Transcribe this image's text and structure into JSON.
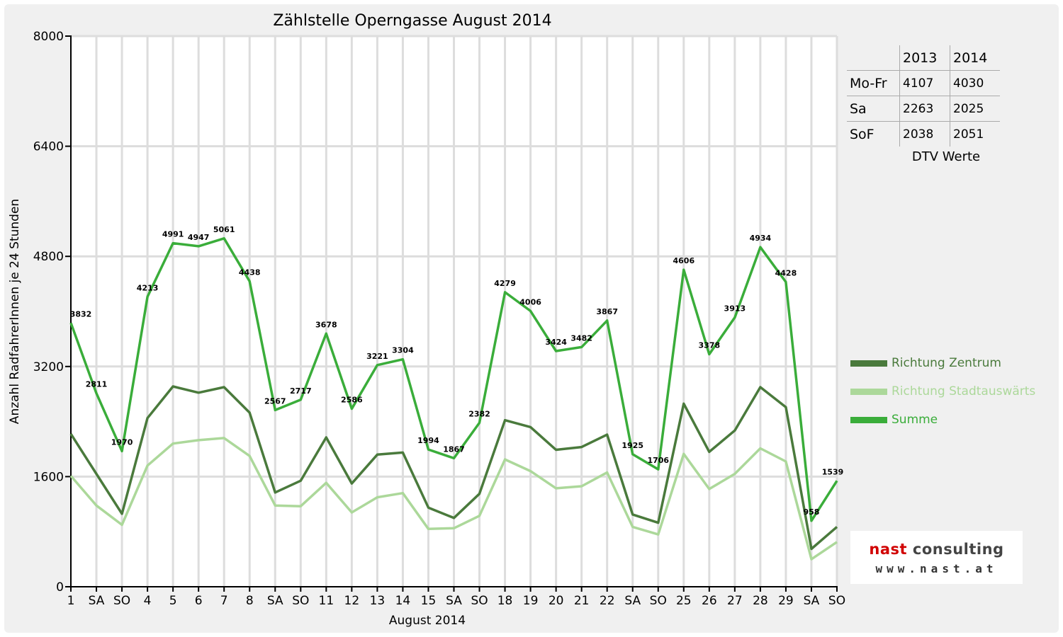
{
  "chart_data": {
    "type": "line",
    "title": "Zählstelle Operngasse August 2014",
    "xlabel": "August 2014",
    "ylabel": "Anzahl RadfahrerInnen je 24 Stunden",
    "ylim": [
      0,
      8000
    ],
    "yticks": [
      "0",
      "1600",
      "3200",
      "4800",
      "6400",
      "8000"
    ],
    "grid": true,
    "legend_position": "right",
    "categories": [
      "1",
      "SA",
      "SO",
      "4",
      "5",
      "6",
      "7",
      "8",
      "SA",
      "SO",
      "11",
      "12",
      "13",
      "14",
      "15",
      "SA",
      "SO",
      "18",
      "19",
      "20",
      "21",
      "22",
      "SA",
      "SO",
      "25",
      "26",
      "27",
      "28",
      "29",
      "SA",
      "SO"
    ],
    "category_colors": [
      "#000000",
      "#000000",
      "#e00000",
      "#000000",
      "#000000",
      "#000000",
      "#000000",
      "#000000",
      "#000000",
      "#e00000",
      "#000000",
      "#000000",
      "#000000",
      "#000000",
      "#e00000",
      "#000000",
      "#e00000",
      "#000000",
      "#000000",
      "#000000",
      "#000000",
      "#000000",
      "#000000",
      "#e00000",
      "#000000",
      "#000000",
      "#000000",
      "#000000",
      "#000000",
      "#000000",
      "#e00000"
    ],
    "series": [
      {
        "name": "Richtung Zentrum",
        "color": "#4a7a3c",
        "values": [
          2220,
          1640,
          1060,
          2450,
          2910,
          2820,
          2900,
          2530,
          1370,
          1540,
          2170,
          1500,
          1920,
          1950,
          1150,
          1000,
          1350,
          2420,
          2320,
          1990,
          2030,
          2210,
          1050,
          930,
          2660,
          1960,
          2270,
          2900,
          2610,
          550,
          870
        ]
      },
      {
        "name": "Richtung Stadtauswärts",
        "color": "#acd89a",
        "values": [
          1610,
          1180,
          900,
          1760,
          2080,
          2130,
          2160,
          1900,
          1180,
          1170,
          1510,
          1080,
          1300,
          1360,
          840,
          850,
          1030,
          1850,
          1680,
          1430,
          1460,
          1660,
          870,
          760,
          1930,
          1420,
          1640,
          2010,
          1820,
          400,
          650
        ]
      },
      {
        "name": "Summe",
        "color": "#3aad3a",
        "values": [
          3832,
          2811,
          1970,
          4213,
          4991,
          4947,
          5061,
          4438,
          2567,
          2717,
          3678,
          2586,
          3221,
          3304,
          1994,
          1867,
          2382,
          4279,
          4006,
          3424,
          3482,
          3867,
          1925,
          1706,
          4606,
          3378,
          3913,
          4934,
          4428,
          958,
          1539
        ]
      }
    ],
    "data_labels": [
      "3832",
      "2811",
      "1970",
      "4213",
      "4991",
      "4947",
      "5061",
      "4438",
      "2567",
      "2717",
      "3678",
      "2586",
      "3221",
      "3304",
      "1994",
      "1867",
      "2382",
      "4279",
      "4006",
      "3424",
      "3482",
      "3867",
      "1925",
      "1706",
      "4606",
      "3378",
      "3913",
      "4934",
      "4428",
      "958",
      "1539"
    ]
  },
  "dtv_table": {
    "headers": [
      "",
      "2013",
      "2014"
    ],
    "rows": [
      {
        "label": "Mo-Fr",
        "v2013": "4107",
        "v2014": "4030"
      },
      {
        "label": "Sa",
        "v2013": "2263",
        "v2014": "2025"
      },
      {
        "label": "SoF",
        "v2013": "2038",
        "v2014": "2051"
      }
    ],
    "caption": "DTV Werte"
  },
  "legend": [
    {
      "label": "Richtung Zentrum",
      "color": "#4a7a3c"
    },
    {
      "label": "Richtung Stadtauswärts",
      "color": "#acd89a"
    },
    {
      "label": "Summe",
      "color": "#3aad3a"
    }
  ],
  "logo": {
    "name_part1": "nast",
    "name_part2": " consulting",
    "url": "www.nast.at"
  }
}
